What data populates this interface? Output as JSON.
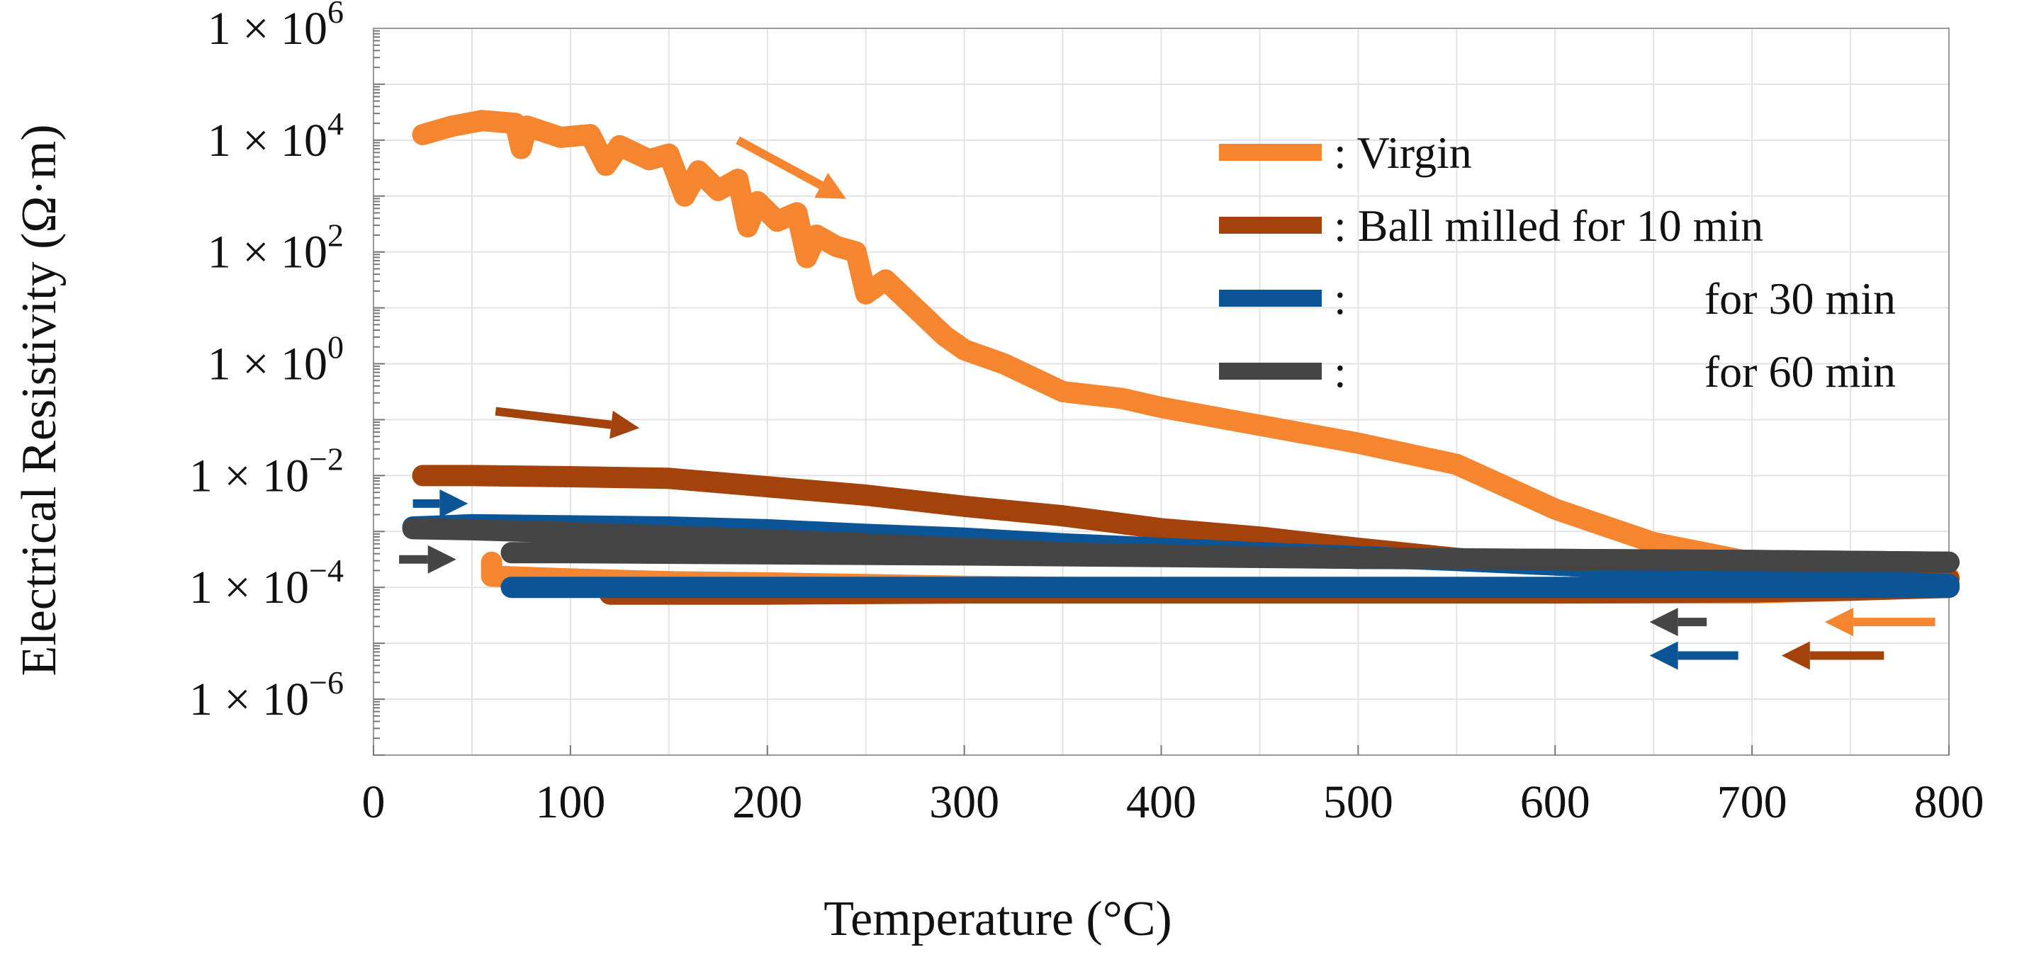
{
  "chart_data": {
    "type": "line",
    "xlabel": "Temperature (°C)",
    "ylabel": "Electrical Resistivity (Ω·m)",
    "xlim": [
      0,
      800
    ],
    "ylim_log10": [
      -7,
      6
    ],
    "y_scale": "log",
    "grid": true,
    "x_ticks": [
      {
        "value": 0,
        "label": "0"
      },
      {
        "value": 100,
        "label": "100"
      },
      {
        "value": 200,
        "label": "200"
      },
      {
        "value": 300,
        "label": "300"
      },
      {
        "value": 400,
        "label": "400"
      },
      {
        "value": 500,
        "label": "500"
      },
      {
        "value": 600,
        "label": "600"
      },
      {
        "value": 700,
        "label": "700"
      },
      {
        "value": 800,
        "label": "800"
      }
    ],
    "y_ticks": [
      {
        "exp": 6,
        "base": "1 × 10",
        "sup": "6"
      },
      {
        "exp": 4,
        "base": "1 × 10",
        "sup": "4"
      },
      {
        "exp": 2,
        "base": "1 × 10",
        "sup": "2"
      },
      {
        "exp": 0,
        "base": "1 × 10",
        "sup": "0"
      },
      {
        "exp": -2,
        "base": "1 × 10",
        "sup": "−2"
      },
      {
        "exp": -4,
        "base": "1 × 10",
        "sup": "−4"
      },
      {
        "exp": -6,
        "base": "1 × 10",
        "sup": "−6"
      }
    ],
    "legend": {
      "placement": "top-right",
      "entries": [
        {
          "color": "#f5852f",
          "label": ": Virgin"
        },
        {
          "color": "#a4420c",
          "label": ": Ball milled for 10 min"
        },
        {
          "color": "#0b5597",
          "label": ":",
          "suffix": "for 30 min"
        },
        {
          "color": "#454545",
          "label": ":",
          "suffix": "for 60 min"
        }
      ]
    },
    "series": [
      {
        "name": "Virgin",
        "color": "#f5852f",
        "heating": [
          [
            25,
            4.1
          ],
          [
            40,
            4.25
          ],
          [
            55,
            4.35
          ],
          [
            72,
            4.3
          ],
          [
            75,
            3.85
          ],
          [
            78,
            4.25
          ],
          [
            95,
            4.05
          ],
          [
            110,
            4.1
          ],
          [
            118,
            3.55
          ],
          [
            125,
            3.9
          ],
          [
            140,
            3.65
          ],
          [
            150,
            3.75
          ],
          [
            158,
            3.0
          ],
          [
            165,
            3.45
          ],
          [
            175,
            3.1
          ],
          [
            185,
            3.3
          ],
          [
            190,
            2.45
          ],
          [
            195,
            2.9
          ],
          [
            205,
            2.55
          ],
          [
            215,
            2.7
          ],
          [
            220,
            1.9
          ],
          [
            225,
            2.3
          ],
          [
            235,
            2.1
          ],
          [
            245,
            2.0
          ],
          [
            250,
            1.25
          ],
          [
            260,
            1.5
          ],
          [
            275,
            1.0
          ],
          [
            290,
            0.5
          ],
          [
            300,
            0.25
          ],
          [
            320,
            0.0
          ],
          [
            350,
            -0.5
          ],
          [
            380,
            -0.62
          ],
          [
            400,
            -0.78
          ],
          [
            450,
            -1.1
          ],
          [
            500,
            -1.42
          ],
          [
            550,
            -1.8
          ],
          [
            600,
            -2.6
          ],
          [
            650,
            -3.2
          ],
          [
            700,
            -3.55
          ],
          [
            750,
            -3.75
          ],
          [
            800,
            -3.82
          ]
        ],
        "cooling": [
          [
            800,
            -3.95
          ],
          [
            750,
            -4.05
          ],
          [
            700,
            -4.1
          ],
          [
            650,
            -4.1
          ],
          [
            600,
            -4.1
          ],
          [
            550,
            -4.08
          ],
          [
            500,
            -4.08
          ],
          [
            450,
            -4.05
          ],
          [
            400,
            -4.02
          ],
          [
            350,
            -4.0
          ],
          [
            300,
            -3.98
          ],
          [
            250,
            -3.95
          ],
          [
            200,
            -3.92
          ],
          [
            150,
            -3.9
          ],
          [
            100,
            -3.85
          ],
          [
            60,
            -3.8
          ],
          [
            60,
            -3.55
          ]
        ]
      },
      {
        "name": "Ball milled for 10 min",
        "color": "#a4420c",
        "heating": [
          [
            25,
            -2.0
          ],
          [
            50,
            -2.0
          ],
          [
            100,
            -2.02
          ],
          [
            150,
            -2.05
          ],
          [
            200,
            -2.2
          ],
          [
            250,
            -2.35
          ],
          [
            300,
            -2.55
          ],
          [
            350,
            -2.72
          ],
          [
            400,
            -2.95
          ],
          [
            450,
            -3.1
          ],
          [
            500,
            -3.3
          ],
          [
            550,
            -3.48
          ],
          [
            600,
            -3.6
          ],
          [
            650,
            -3.68
          ],
          [
            700,
            -3.75
          ],
          [
            750,
            -3.82
          ],
          [
            800,
            -3.85
          ]
        ],
        "cooling": [
          [
            800,
            -4.0
          ],
          [
            750,
            -4.05
          ],
          [
            700,
            -4.08
          ],
          [
            600,
            -4.1
          ],
          [
            500,
            -4.1
          ],
          [
            400,
            -4.1
          ],
          [
            300,
            -4.1
          ],
          [
            200,
            -4.12
          ],
          [
            120,
            -4.12
          ]
        ]
      },
      {
        "name": "for 30 min",
        "color": "#0b5597",
        "heating": [
          [
            20,
            -2.92
          ],
          [
            50,
            -2.88
          ],
          [
            100,
            -2.9
          ],
          [
            150,
            -2.92
          ],
          [
            200,
            -2.97
          ],
          [
            250,
            -3.05
          ],
          [
            300,
            -3.12
          ],
          [
            350,
            -3.22
          ],
          [
            400,
            -3.3
          ],
          [
            450,
            -3.38
          ],
          [
            500,
            -3.45
          ],
          [
            550,
            -3.52
          ],
          [
            600,
            -3.6
          ],
          [
            650,
            -3.68
          ],
          [
            700,
            -3.78
          ],
          [
            750,
            -3.88
          ],
          [
            800,
            -3.95
          ]
        ],
        "cooling": [
          [
            800,
            -4.0
          ],
          [
            700,
            -4.0
          ],
          [
            600,
            -4.0
          ],
          [
            500,
            -4.0
          ],
          [
            400,
            -4.0
          ],
          [
            300,
            -4.0
          ],
          [
            200,
            -4.0
          ],
          [
            100,
            -4.0
          ],
          [
            70,
            -4.0
          ]
        ]
      },
      {
        "name": "for 60 min",
        "color": "#454545",
        "heating": [
          [
            20,
            -2.95
          ],
          [
            50,
            -2.97
          ],
          [
            100,
            -3.02
          ],
          [
            150,
            -3.08
          ],
          [
            200,
            -3.15
          ],
          [
            250,
            -3.22
          ],
          [
            300,
            -3.3
          ],
          [
            350,
            -3.38
          ],
          [
            400,
            -3.42
          ],
          [
            500,
            -3.48
          ],
          [
            600,
            -3.5
          ],
          [
            700,
            -3.52
          ],
          [
            800,
            -3.55
          ]
        ],
        "cooling": [
          [
            800,
            -3.55
          ],
          [
            700,
            -3.52
          ],
          [
            600,
            -3.5
          ],
          [
            500,
            -3.48
          ],
          [
            400,
            -3.45
          ],
          [
            300,
            -3.42
          ],
          [
            200,
            -3.4
          ],
          [
            100,
            -3.38
          ],
          [
            70,
            -3.38
          ]
        ]
      }
    ],
    "arrows": [
      {
        "color": "#f5852f",
        "from": [
          185,
          4.0
        ],
        "to": [
          240,
          2.95
        ]
      },
      {
        "color": "#a4420c",
        "from": [
          62,
          -0.85
        ],
        "to": [
          135,
          -1.15
        ]
      },
      {
        "color": "#0b5597",
        "from": [
          20,
          -2.5
        ],
        "to": [
          48,
          -2.5
        ]
      },
      {
        "color": "#454545",
        "from": [
          13,
          -3.5
        ],
        "to": [
          42,
          -3.5
        ]
      },
      {
        "color": "#f5852f",
        "from": [
          793,
          -4.62
        ],
        "to": [
          737,
          -4.62
        ]
      },
      {
        "color": "#a4420c",
        "from": [
          767,
          -5.22
        ],
        "to": [
          715,
          -5.22
        ]
      },
      {
        "color": "#0b5597",
        "from": [
          693,
          -5.22
        ],
        "to": [
          648,
          -5.22
        ]
      },
      {
        "color": "#454545",
        "from": [
          677,
          -4.62
        ],
        "to": [
          648,
          -4.62
        ]
      }
    ]
  }
}
